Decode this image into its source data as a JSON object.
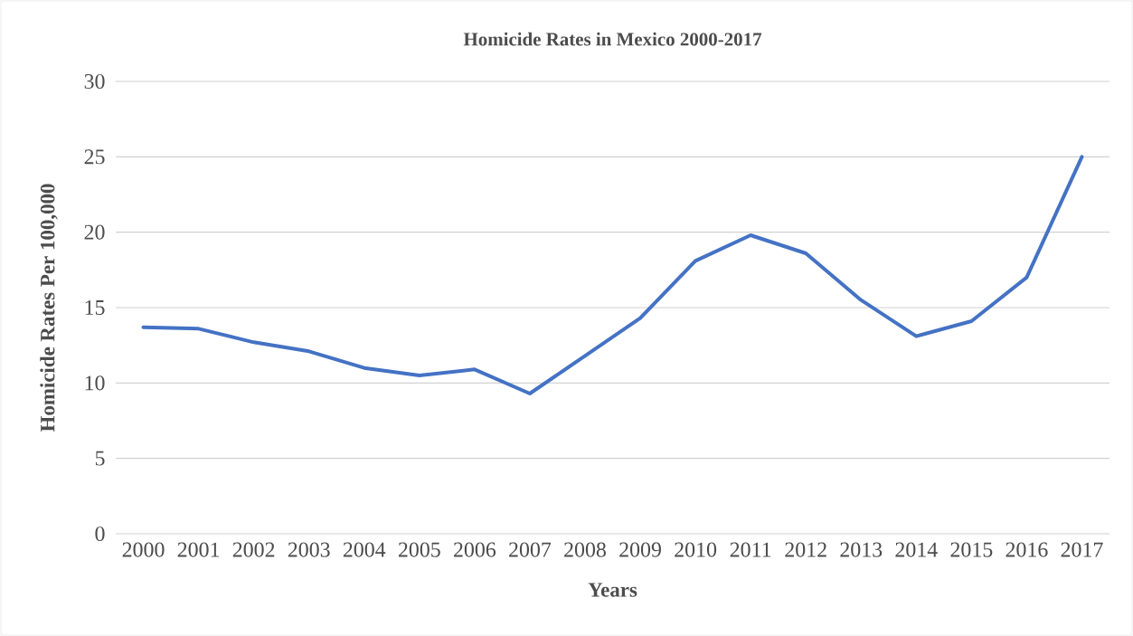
{
  "chart_data": {
    "type": "line",
    "title": "Homicide Rates in Mexico 2000-2017",
    "xlabel": "Years",
    "ylabel": "Homicide Rates Per 100,000",
    "categories": [
      "2000",
      "2001",
      "2002",
      "2003",
      "2004",
      "2005",
      "2006",
      "2007",
      "2008",
      "2009",
      "2010",
      "2011",
      "2012",
      "2013",
      "2014",
      "2015",
      "2016",
      "2017"
    ],
    "series": [
      {
        "color": "#4472c4",
        "values": [
          13.7,
          13.6,
          12.7,
          12.1,
          11.0,
          10.5,
          10.9,
          9.3,
          11.8,
          14.3,
          18.1,
          19.8,
          18.6,
          15.5,
          13.1,
          14.1,
          17.0,
          25.0
        ]
      }
    ],
    "ylim": [
      0,
      30
    ],
    "yticks": [
      0,
      5,
      10,
      15,
      20,
      25,
      30
    ],
    "grid": "y",
    "legend": false,
    "marker": "none",
    "line_style": "solid"
  }
}
